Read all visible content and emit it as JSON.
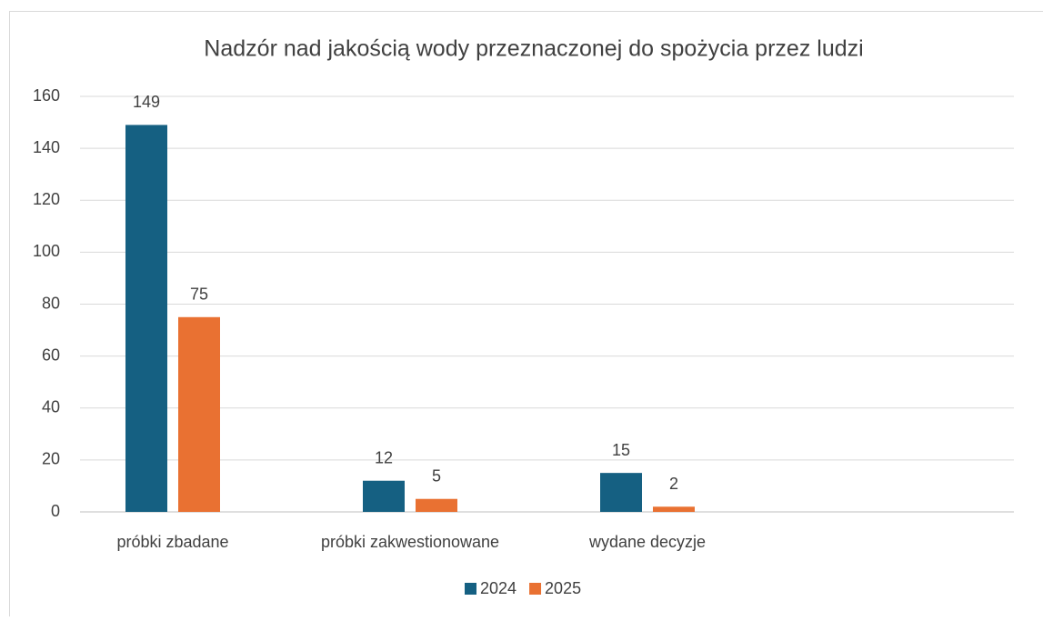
{
  "chart_data": {
    "type": "bar",
    "title": "Nadzór nad jakością wody przeznaczonej do spożycia przez ludzi",
    "categories": [
      "próbki zbadane",
      "próbki zakwestionowane",
      "wydane decyzje"
    ],
    "series": [
      {
        "name": "2024",
        "color": "#156082",
        "values": [
          149,
          12,
          15
        ]
      },
      {
        "name": "2025",
        "color": "#e97132",
        "values": [
          75,
          5,
          2
        ]
      }
    ],
    "ylim": [
      0,
      160
    ],
    "yticks": [
      0,
      20,
      40,
      60,
      80,
      100,
      120,
      140,
      160
    ],
    "grid": true,
    "legend": "bottom"
  }
}
